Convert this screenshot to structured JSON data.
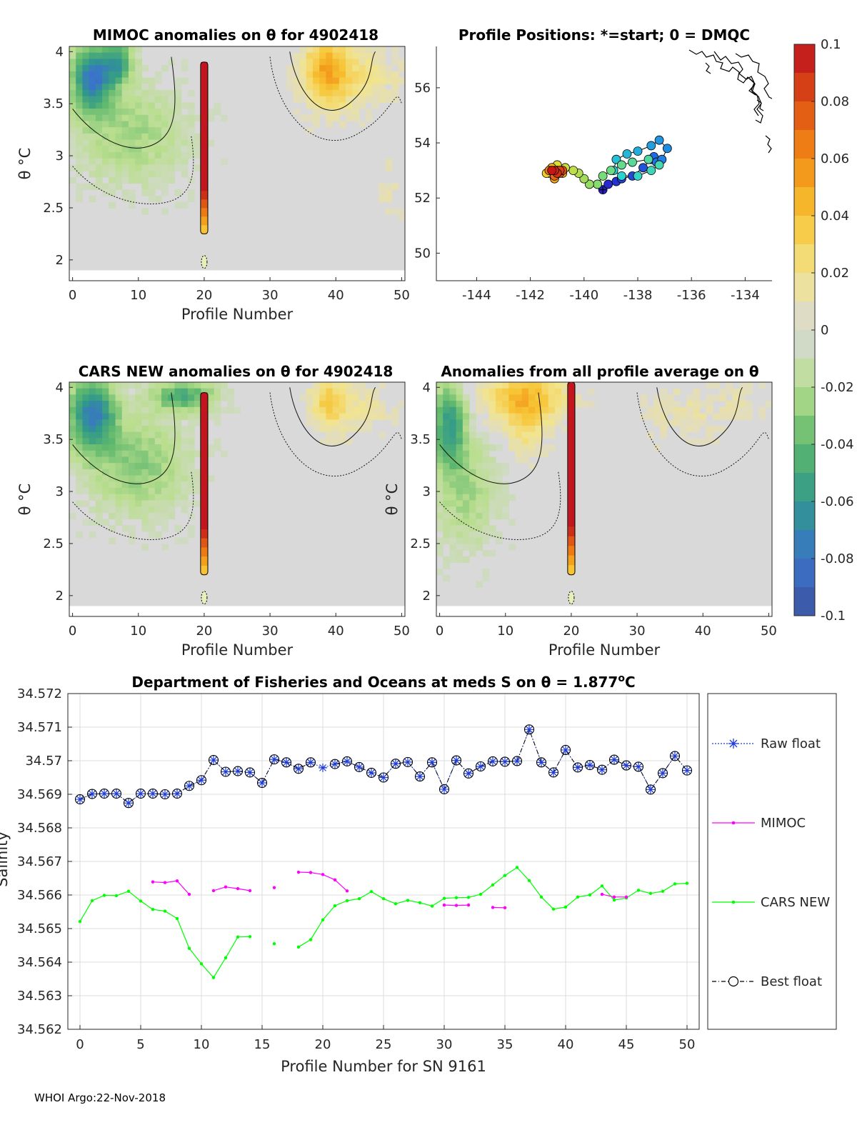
{
  "footer": "WHOI Argo:22-Nov-2018",
  "colors": {
    "raw_float": "#1f3dd6",
    "mimoc": "#ff00ff",
    "cars_new": "#00ff00",
    "best_float": "#000000",
    "background_field": "#d9d9d9"
  },
  "colorbar": {
    "ticks": [
      "0.1",
      "0.08",
      "0.06",
      "0.04",
      "0.02",
      "0",
      "-0.02",
      "-0.04",
      "-0.06",
      "-0.08",
      "-0.1"
    ],
    "range": [
      -0.1,
      0.1
    ]
  },
  "chart_data": [
    {
      "id": "mimoc",
      "type": "heatmap",
      "title": "MIMOC anomalies on θ  for 4902418",
      "xlabel": "Profile Number",
      "ylabel": "θ °C",
      "xticks": [
        "0",
        "10",
        "20",
        "30",
        "40",
        "50"
      ],
      "yticks": [
        "4",
        "3.5",
        "3",
        "2.5",
        "2"
      ],
      "xlim": [
        -0.5,
        50.5
      ],
      "ylim": [
        1.8,
        4.05
      ],
      "highlight_profile": 20,
      "highlight_top": 3.9,
      "highlight_bottom": 2.25
    },
    {
      "id": "positions",
      "type": "scatter",
      "title": "Profile Positions: *=start; 0 = DMQC",
      "xticks": [
        "-144",
        "-142",
        "-140",
        "-138",
        "-136",
        "-134"
      ],
      "yticks": [
        "56",
        "54",
        "52",
        "50"
      ],
      "xlim": [
        -145.5,
        -133
      ],
      "ylim": [
        49,
        57.5
      ],
      "lon": [
        -139.3,
        -139.1,
        -138.8,
        -138.6,
        -138.2,
        -137.8,
        -137.5,
        -137.4,
        -137.3,
        -137.1,
        -136.9,
        -137.2,
        -137.5,
        -138.0,
        -138.4,
        -138.8,
        -138.9,
        -138.6,
        -138.0,
        -137.5,
        -137.2,
        -137.6,
        -138.2,
        -138.6,
        -139.0,
        -139.3,
        -139.5,
        -139.8,
        -140.0,
        -140.2,
        -140.4,
        -140.7,
        -141.0,
        -141.2,
        -141.3,
        -141.4,
        -141.2,
        -141.0,
        -140.8,
        -141.1,
        -141.2,
        -140.9,
        -141.0,
        -141.3,
        -141.1,
        -140.9,
        -140.8,
        -140.9,
        -141.0,
        -141.1,
        -141.2
      ],
      "lat": [
        52.3,
        52.5,
        52.6,
        52.7,
        52.8,
        53.1,
        53.4,
        53.5,
        53.3,
        53.4,
        53.8,
        54.1,
        53.9,
        53.7,
        53.6,
        53.4,
        53.0,
        52.8,
        52.8,
        53.0,
        53.2,
        53.4,
        53.3,
        53.2,
        53.0,
        52.8,
        52.5,
        52.5,
        52.7,
        52.9,
        53.0,
        53.1,
        53.2,
        53.0,
        52.9,
        52.9,
        53.1,
        53.0,
        52.9,
        52.7,
        53.0,
        53.0,
        52.9,
        53.0,
        52.8,
        52.9,
        53.0,
        53.0,
        52.9,
        53.0,
        53.0
      ]
    },
    {
      "id": "cars",
      "type": "heatmap",
      "title": "CARS NEW anomalies on θ for 4902418",
      "xlabel": "Profile Number",
      "ylabel": "θ °C",
      "xticks": [
        "0",
        "10",
        "20",
        "30",
        "40",
        "50"
      ],
      "yticks": [
        "4",
        "3.5",
        "3",
        "2.5",
        "2"
      ],
      "xlim": [
        -0.5,
        50.5
      ],
      "ylim": [
        1.8,
        4.05
      ],
      "highlight_profile": 20,
      "highlight_top": 3.95,
      "highlight_bottom": 2.2
    },
    {
      "id": "allprof",
      "type": "heatmap",
      "title": "Anomalies from all profile average on θ",
      "xlabel": "Profile Number",
      "ylabel": "θ °C",
      "xticks": [
        "0",
        "10",
        "20",
        "30",
        "40",
        "50"
      ],
      "yticks": [
        "4",
        "3.5",
        "3",
        "2.5",
        "2"
      ],
      "xlim": [
        -0.5,
        50.5
      ],
      "ylim": [
        1.8,
        4.05
      ],
      "highlight_profile": 20,
      "highlight_top": 4.05,
      "highlight_bottom": 2.2
    },
    {
      "id": "salinity",
      "type": "line",
      "title": "Department of Fisheries and Oceans at meds S on θ = 1.877",
      "title_sup": "o",
      "title_tail": "C",
      "xlabel": "Profile Number for SN 9161",
      "ylabel": "Salinity",
      "xticks": [
        "0",
        "5",
        "10",
        "15",
        "20",
        "25",
        "30",
        "35",
        "40",
        "45",
        "50"
      ],
      "yticks": [
        "34.572",
        "34.571",
        "34.57",
        "34.569",
        "34.568",
        "34.567",
        "34.566",
        "34.565",
        "34.564",
        "34.563",
        "34.562"
      ],
      "xlim": [
        -1,
        51
      ],
      "ylim": [
        34.562,
        34.572
      ],
      "x": [
        0,
        1,
        2,
        3,
        4,
        5,
        6,
        7,
        8,
        9,
        10,
        11,
        12,
        13,
        14,
        15,
        16,
        17,
        18,
        19,
        20,
        21,
        22,
        23,
        24,
        25,
        26,
        27,
        28,
        29,
        30,
        31,
        32,
        33,
        34,
        35,
        36,
        37,
        38,
        39,
        40,
        41,
        42,
        43,
        44,
        45,
        46,
        47,
        48,
        49,
        50
      ],
      "series": [
        {
          "name": "Raw float",
          "values": [
            34.56885,
            34.56901,
            34.56902,
            34.56902,
            34.56874,
            34.56902,
            34.56902,
            34.569,
            34.56902,
            34.56925,
            34.56942,
            34.57002,
            34.56967,
            34.56969,
            34.56965,
            34.56934,
            34.57004,
            34.56995,
            34.56976,
            34.56995,
            34.56979,
            34.5699,
            34.56998,
            34.56981,
            34.56964,
            34.5695,
            34.56991,
            34.56996,
            34.56953,
            34.56995,
            34.56915,
            34.57001,
            34.56962,
            34.56983,
            34.56998,
            34.56997,
            34.56999,
            34.57093,
            34.56995,
            34.56965,
            34.57032,
            34.5698,
            34.56987,
            34.56973,
            34.57003,
            34.56986,
            34.56982,
            34.56914,
            34.56963,
            34.57014,
            34.56971
          ]
        },
        {
          "name": "MIMOC",
          "values": [
            null,
            null,
            null,
            null,
            null,
            null,
            34.56639,
            34.56637,
            34.56642,
            34.56602,
            null,
            34.56613,
            34.56624,
            34.56619,
            34.56613,
            null,
            34.56622,
            null,
            34.56668,
            34.56667,
            34.56661,
            34.56645,
            34.56612,
            null,
            null,
            null,
            null,
            null,
            null,
            null,
            34.5657,
            34.56569,
            34.5657,
            null,
            34.56563,
            34.56562,
            null,
            null,
            null,
            null,
            null,
            null,
            null,
            34.56602,
            34.56594,
            34.56594,
            null,
            null,
            null,
            null,
            null
          ]
        },
        {
          "name": "CARS NEW",
          "values": [
            34.56521,
            34.56583,
            34.56599,
            34.56598,
            34.56611,
            34.56582,
            34.56557,
            34.56552,
            34.5653,
            34.56441,
            34.56395,
            34.56354,
            34.56413,
            34.56475,
            34.56476,
            null,
            34.56455,
            null,
            34.56445,
            34.56467,
            34.56526,
            34.56568,
            34.56583,
            34.56589,
            34.5661,
            34.56589,
            34.56574,
            34.56584,
            34.56577,
            34.56567,
            34.5659,
            34.56592,
            34.56593,
            34.56602,
            34.5663,
            34.56658,
            34.56682,
            34.56643,
            34.56594,
            34.56558,
            34.56564,
            34.56594,
            34.566,
            34.56627,
            34.56585,
            34.56591,
            34.56614,
            34.56605,
            34.56611,
            34.56633,
            34.56635
          ]
        },
        {
          "name": "Best float",
          "values": [
            34.56885,
            34.56901,
            34.56902,
            34.56902,
            34.56874,
            34.56902,
            34.56902,
            34.569,
            34.56902,
            34.56925,
            34.56942,
            34.57002,
            34.56967,
            34.56969,
            34.56965,
            34.56934,
            34.57004,
            34.56995,
            34.56976,
            34.56995,
            null,
            34.5699,
            34.56998,
            34.56981,
            34.56964,
            34.5695,
            34.56991,
            34.56996,
            34.56953,
            34.56995,
            34.56915,
            34.57001,
            34.56962,
            34.56983,
            34.56998,
            34.56997,
            34.56999,
            34.57093,
            34.56995,
            34.56965,
            34.57032,
            34.5698,
            34.56987,
            34.56973,
            34.57003,
            34.56986,
            34.56982,
            34.56914,
            34.56963,
            34.57014,
            34.56971
          ]
        }
      ]
    }
  ]
}
